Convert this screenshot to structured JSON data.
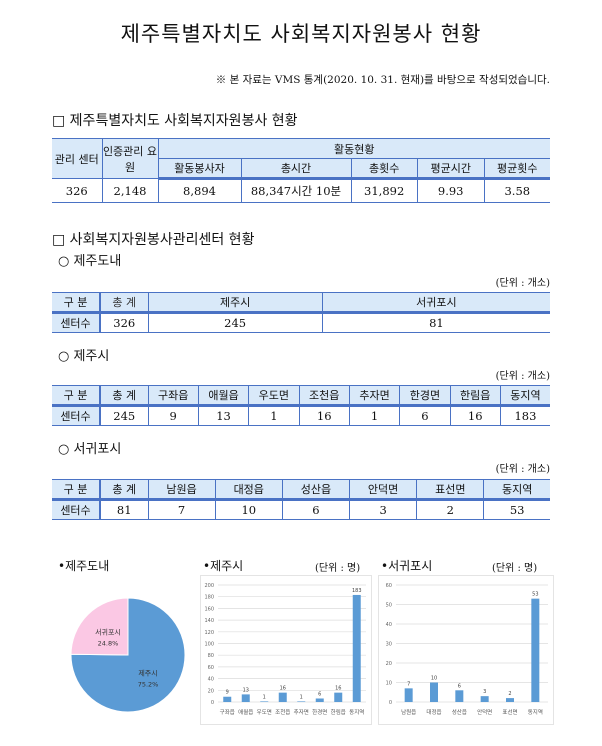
{
  "title": "제주특별자치도 사회복지자원봉사 현황",
  "note": "※ 본 자료는 VMS 통계(2020. 10. 31. 현재)를 바탕으로 작성되었습니다.",
  "section1": {
    "heading": "□ 제주특별자치도 사회복지자원봉사 현황",
    "headers": {
      "center": "관리 센터",
      "staff": "인증관리 요원",
      "activity": "활동현황",
      "volunteers": "활동봉사자",
      "total_time": "총시간",
      "total_count": "총횟수",
      "avg_time": "평균시간",
      "avg_count": "평균횟수"
    },
    "row": {
      "center": "326",
      "staff": "2,148",
      "volunteers": "8,894",
      "total_time": "88,347시간 10분",
      "total_count": "31,892",
      "avg_time": "9.93",
      "avg_count": "3.58"
    }
  },
  "section2": {
    "heading": "□ 사회복지자원봉사관리센터 현황",
    "unit": "(단위 : 개소)",
    "col_label": "구  분",
    "row_label": "센터수",
    "total_label": "총 계",
    "province": {
      "heading": "○ 제주도내",
      "cols": [
        "제주시",
        "서귀포시"
      ],
      "total": "326",
      "values": [
        "245",
        "81"
      ]
    },
    "jeju": {
      "heading": "○ 제주시",
      "cols": [
        "구좌읍",
        "애월읍",
        "우도면",
        "조천읍",
        "추자면",
        "한경면",
        "한림읍",
        "동지역"
      ],
      "total": "245",
      "values": [
        "9",
        "13",
        "1",
        "16",
        "1",
        "6",
        "16",
        "183"
      ]
    },
    "seogwipo": {
      "heading": "○ 서귀포시",
      "cols": [
        "남원읍",
        "대정읍",
        "성산읍",
        "안덕면",
        "표선면",
        "동지역"
      ],
      "total": "81",
      "values": [
        "7",
        "10",
        "6",
        "3",
        "2",
        "53"
      ]
    }
  },
  "chart_data": [
    {
      "type": "pie",
      "title": "•제주도내",
      "slices": [
        {
          "label": "제주시",
          "value": 75.2,
          "pct": "75.2%",
          "color": "#5b9bd5"
        },
        {
          "label": "서귀포시",
          "value": 24.8,
          "pct": "24.8%",
          "color": "#fbc8e4"
        }
      ]
    },
    {
      "type": "bar",
      "title": "•제주시",
      "unit": "(단위 : 명)",
      "categories": [
        "구좌읍",
        "애월읍",
        "우도면",
        "조천읍",
        "추자면",
        "한경면",
        "한림읍",
        "동지역"
      ],
      "values": [
        9,
        13,
        1,
        16,
        1,
        6,
        16,
        183
      ],
      "ylim": [
        0,
        200
      ],
      "yticks": [
        0,
        20,
        40,
        60,
        80,
        100,
        120,
        140,
        160,
        180,
        200
      ],
      "grid": true,
      "color": "#5b9bd5"
    },
    {
      "type": "bar",
      "title": "•서귀포시",
      "unit": "(단위 : 명)",
      "categories": [
        "남원읍",
        "대정읍",
        "성산읍",
        "안덕면",
        "표선면",
        "동지역"
      ],
      "values": [
        7,
        10,
        6,
        3,
        2,
        53
      ],
      "ylim": [
        0,
        60
      ],
      "yticks": [
        0,
        10,
        20,
        30,
        40,
        50,
        60
      ],
      "grid": true,
      "color": "#5b9bd5"
    }
  ]
}
